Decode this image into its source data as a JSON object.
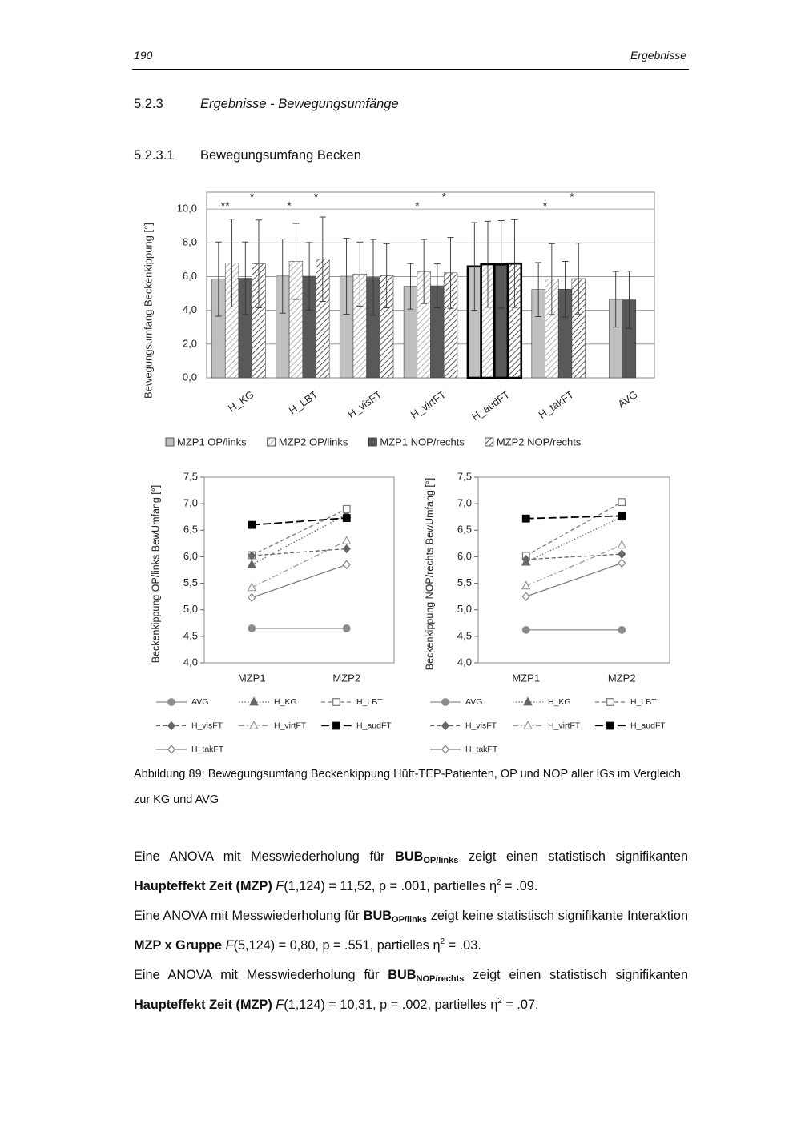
{
  "header": {
    "page": "190",
    "running_title": "Ergebnisse"
  },
  "sections": [
    {
      "number": "5.2.3",
      "title": "Ergebnisse - Bewegungsumfänge"
    },
    {
      "number": "5.2.3.1",
      "title": "Bewegungsumfang Becken"
    }
  ],
  "chart_data": [
    {
      "type": "bar",
      "y_label": "Bewegungsumfang Beckenkippung [°]",
      "categories": [
        "H_KG",
        "H_LBT",
        "H_visFT",
        "H_virtFT",
        "H_audFT",
        "H_takFT",
        "AVG"
      ],
      "series": [
        {
          "name": "MZP1 OP/links",
          "color": "#c0c0c0",
          "pattern": "solid",
          "values": [
            5.85,
            6.03,
            6.02,
            5.42,
            6.6,
            5.23,
            4.65
          ],
          "errors": [
            2.2,
            2.2,
            2.25,
            1.35,
            2.6,
            1.6,
            1.65
          ]
        },
        {
          "name": "MZP2 OP/links",
          "color": "#a6a6a6",
          "pattern": "hatch",
          "values": [
            6.8,
            6.9,
            6.15,
            6.3,
            6.73,
            5.85,
            null
          ],
          "errors": [
            2.6,
            2.25,
            1.9,
            1.9,
            2.55,
            2.1,
            null
          ]
        },
        {
          "name": "MZP1 NOP/rechts",
          "color": "#595959",
          "pattern": "solid",
          "values": [
            5.9,
            6.02,
            5.95,
            5.45,
            6.72,
            5.25,
            4.62
          ],
          "errors": [
            2.15,
            2.0,
            2.25,
            1.3,
            2.6,
            1.65,
            1.7
          ]
        },
        {
          "name": "MZP2 NOP/rechts",
          "color": "#404040",
          "pattern": "hatch",
          "values": [
            6.75,
            7.03,
            6.05,
            6.22,
            6.77,
            5.88,
            null
          ],
          "errors": [
            2.6,
            2.5,
            1.9,
            2.1,
            2.6,
            2.1,
            null
          ]
        }
      ],
      "annotations_lower": [
        "**",
        "*",
        null,
        "*",
        null,
        "*",
        null
      ],
      "annotations_upper": [
        "*",
        "*",
        null,
        "*",
        null,
        "*",
        null
      ],
      "emphasized_categories": [
        4
      ],
      "ylim": [
        0,
        11
      ],
      "yticks": [
        {
          "value": 0,
          "label": "0,0"
        },
        {
          "value": 2,
          "label": "2,0"
        },
        {
          "value": 4,
          "label": "4,0"
        },
        {
          "value": 6,
          "label": "6,0"
        },
        {
          "value": 8,
          "label": "8,0"
        },
        {
          "value": 10,
          "label": "10,0"
        }
      ],
      "grid": true
    },
    {
      "type": "line",
      "y_label": "Beckenkippung OP/links BewUmfang [°]",
      "categories": [
        "MZP1",
        "MZP2"
      ],
      "series": [
        {
          "name": "AVG",
          "color": "#8c8c8c",
          "line_style": "solid",
          "marker": "circle",
          "marker_fill": "filled",
          "values": [
            4.65,
            4.65
          ]
        },
        {
          "name": "H_KG",
          "color": "#666666",
          "line_style": "dotted",
          "marker": "triangle",
          "marker_fill": "filled",
          "values": [
            5.85,
            6.8
          ]
        },
        {
          "name": "H_LBT",
          "color": "#777777",
          "line_style": "dashed",
          "marker": "square",
          "marker_fill": "open",
          "values": [
            6.03,
            6.9
          ]
        },
        {
          "name": "H_visFT",
          "color": "#666666",
          "line_style": "dashed",
          "marker": "diamond",
          "marker_fill": "filled",
          "values": [
            6.02,
            6.15
          ]
        },
        {
          "name": "H_virtFT",
          "color": "#999999",
          "line_style": "dashdot",
          "marker": "triangle",
          "marker_fill": "open",
          "values": [
            5.42,
            6.3
          ]
        },
        {
          "name": "H_audFT",
          "color": "#000000",
          "line_style": "longdash",
          "marker": "square",
          "marker_fill": "filled",
          "values": [
            6.6,
            6.73
          ]
        },
        {
          "name": "H_takFT",
          "color": "#808080",
          "line_style": "solid",
          "marker": "diamond",
          "marker_fill": "open",
          "values": [
            5.23,
            5.85
          ]
        }
      ],
      "ylim": [
        4,
        7.5
      ],
      "yticks": [
        {
          "value": 4,
          "label": "4,0"
        },
        {
          "value": 4.5,
          "label": "4,5"
        },
        {
          "value": 5,
          "label": "5,0"
        },
        {
          "value": 5.5,
          "label": "5,5"
        },
        {
          "value": 6,
          "label": "6,0"
        },
        {
          "value": 6.5,
          "label": "6,5"
        },
        {
          "value": 7,
          "label": "7,0"
        },
        {
          "value": 7.5,
          "label": "7,5"
        }
      ],
      "grid": false
    },
    {
      "type": "line",
      "y_label": "Beckenkippung NOP/rechts BewUmfang [°]",
      "categories": [
        "MZP1",
        "MZP2"
      ],
      "series": [
        {
          "name": "AVG",
          "color": "#8c8c8c",
          "line_style": "solid",
          "marker": "circle",
          "marker_fill": "filled",
          "values": [
            4.62,
            4.62
          ]
        },
        {
          "name": "H_KG",
          "color": "#666666",
          "line_style": "dotted",
          "marker": "triangle",
          "marker_fill": "filled",
          "values": [
            5.9,
            6.75
          ]
        },
        {
          "name": "H_LBT",
          "color": "#777777",
          "line_style": "dashed",
          "marker": "square",
          "marker_fill": "open",
          "values": [
            6.02,
            7.03
          ]
        },
        {
          "name": "H_visFT",
          "color": "#666666",
          "line_style": "dashed",
          "marker": "diamond",
          "marker_fill": "filled",
          "values": [
            5.95,
            6.05
          ]
        },
        {
          "name": "H_virtFT",
          "color": "#999999",
          "line_style": "dashdot",
          "marker": "triangle",
          "marker_fill": "open",
          "values": [
            5.45,
            6.22
          ]
        },
        {
          "name": "H_audFT",
          "color": "#000000",
          "line_style": "longdash",
          "marker": "square",
          "marker_fill": "filled",
          "values": [
            6.72,
            6.77
          ]
        },
        {
          "name": "H_takFT",
          "color": "#808080",
          "line_style": "solid",
          "marker": "diamond",
          "marker_fill": "open",
          "values": [
            5.25,
            5.88
          ]
        }
      ],
      "ylim": [
        4,
        7.5
      ],
      "yticks": [
        {
          "value": 4,
          "label": "4,0"
        },
        {
          "value": 4.5,
          "label": "4,5"
        },
        {
          "value": 5,
          "label": "5,0"
        },
        {
          "value": 5.5,
          "label": "5,5"
        },
        {
          "value": 6,
          "label": "6,0"
        },
        {
          "value": 6.5,
          "label": "6,5"
        },
        {
          "value": 7,
          "label": "7,0"
        },
        {
          "value": 7.5,
          "label": "7,5"
        }
      ],
      "grid": false
    }
  ],
  "caption": "Abbildung 89: Bewegungsumfang Beckenkippung Hüft-TEP-Patienten, OP und NOP aller IGs im Vergleich zur KG und AVG",
  "paragraphs": [
    [
      {
        "text": "Eine ANOVA mit Messwiederholung für "
      },
      {
        "text": "BUB",
        "bold": true
      },
      {
        "text": "OP/links",
        "bold": true,
        "sub": true
      },
      {
        "text": " zeigt einen statistisch signifikan­ten "
      },
      {
        "text": "Haupteffekt Zeit (MZP)",
        "bold": true
      },
      {
        "text": " "
      },
      {
        "text": "F",
        "italic": true
      },
      {
        "text": "(1,124) = 11,52, p = .001, partielles η"
      },
      {
        "text": "2",
        "sup": true
      },
      {
        "text": " = .09."
      }
    ],
    [
      {
        "text": "Eine ANOVA mit Messwiederholung für "
      },
      {
        "text": "BUB",
        "bold": true
      },
      {
        "text": "OP/links",
        "bold": true,
        "sub": true
      },
      {
        "text": " zeigt keine statistisch signifikante Interaktion "
      },
      {
        "text": "MZP x Gruppe",
        "bold": true
      },
      {
        "text": " "
      },
      {
        "text": "F",
        "italic": true
      },
      {
        "text": "(5,124) = 0,80, p = .551, partielles η"
      },
      {
        "text": "2",
        "sup": true
      },
      {
        "text": " = .03."
      }
    ],
    [
      {
        "text": "Eine ANOVA mit Messwiederholung für "
      },
      {
        "text": "BUB",
        "bold": true
      },
      {
        "text": "NOP/rechts",
        "bold": true,
        "sub": true
      },
      {
        "text": " zeigt einen statistisch signifi­kanten "
      },
      {
        "text": "Haupteffekt Zeit (MZP)",
        "bold": true
      },
      {
        "text": " "
      },
      {
        "text": "F",
        "italic": true
      },
      {
        "text": "(1,124) = 10,31, p = .002, partielles η"
      },
      {
        "text": "2",
        "sup": true
      },
      {
        "text": " = .07."
      }
    ]
  ]
}
